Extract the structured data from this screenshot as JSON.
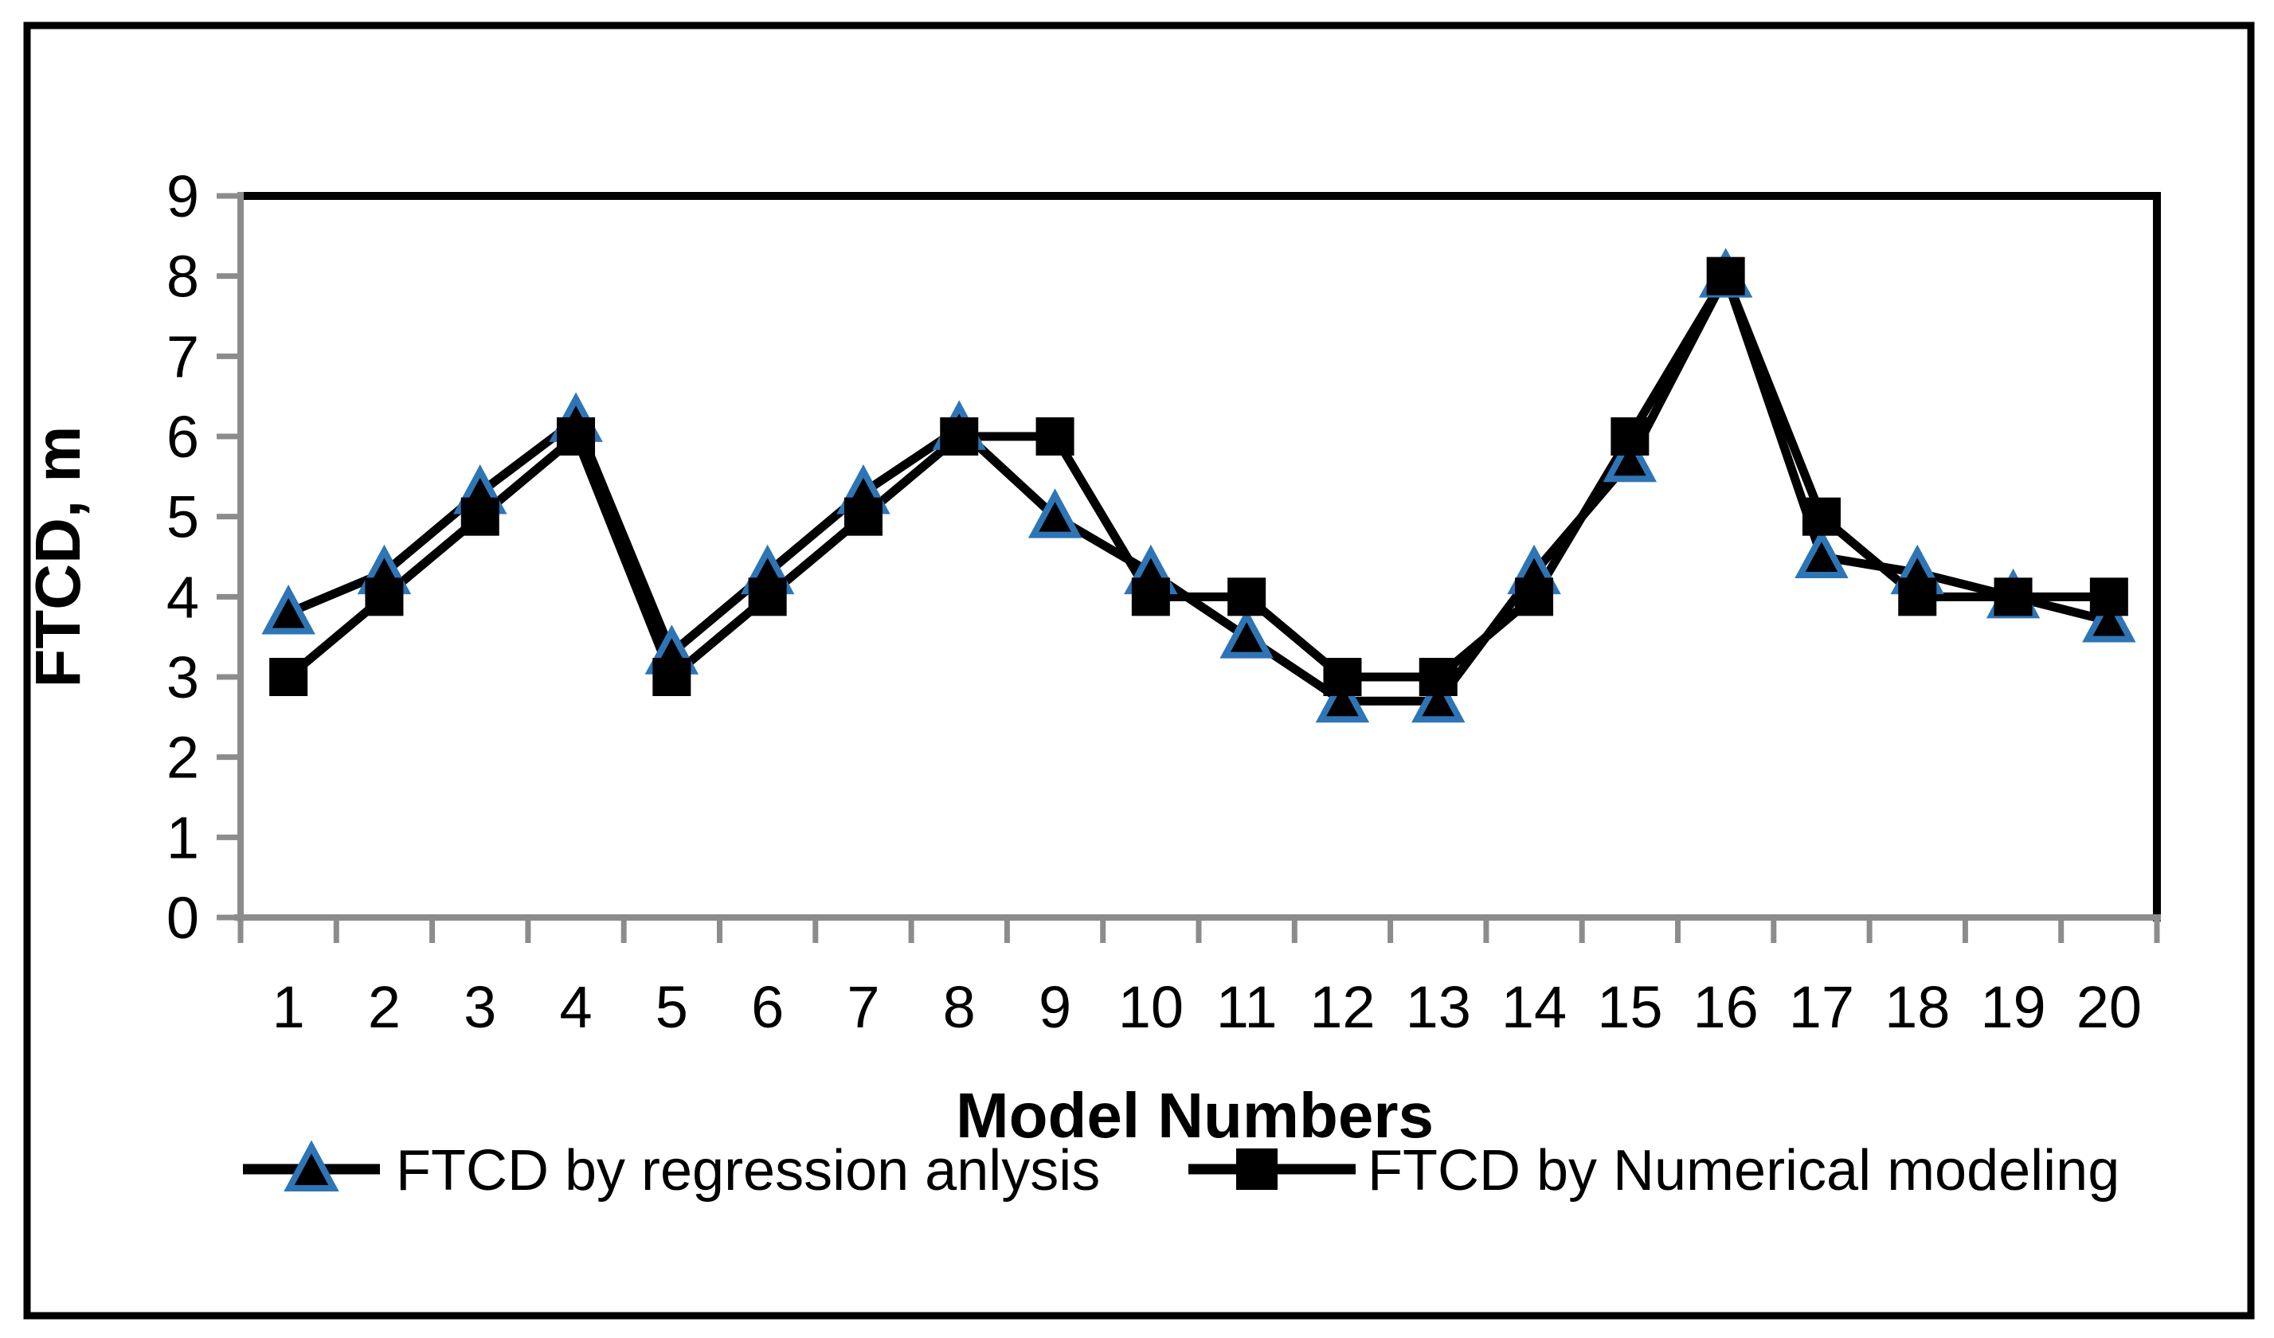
{
  "figure": {
    "background": "#ffffff",
    "outer_border_color": "#000000",
    "plot_border_color": "#000000",
    "axis_color": "#8C8C8C",
    "text_color": "#000000"
  },
  "chart_data": {
    "type": "line",
    "title": "",
    "xlabel": "Model Numbers",
    "ylabel": "FTCD, m",
    "categories": [
      1,
      2,
      3,
      4,
      5,
      6,
      7,
      8,
      9,
      10,
      11,
      12,
      13,
      14,
      15,
      16,
      17,
      18,
      19,
      20
    ],
    "series": [
      {
        "name": "FTCD by regression anlysis",
        "marker": "triangle",
        "marker_fill": "#000000",
        "marker_stroke": "#2E75B6",
        "line_color": "#000000",
        "values": [
          3.8,
          4.3,
          5.3,
          6.2,
          3.3,
          4.3,
          5.3,
          6.1,
          5.0,
          4.3,
          3.5,
          2.7,
          2.7,
          4.3,
          5.7,
          8.0,
          4.5,
          4.3,
          4.0,
          3.7
        ]
      },
      {
        "name": "FTCD by Numerical modeling",
        "marker": "square",
        "marker_fill": "#000000",
        "marker_stroke": "#000000",
        "line_color": "#000000",
        "values": [
          3,
          4,
          5,
          6,
          3,
          4,
          5,
          6,
          6,
          4,
          4,
          3,
          3,
          4,
          6,
          8,
          5,
          4,
          4,
          4
        ]
      }
    ],
    "ylim": [
      0,
      9
    ],
    "ytick_step": 1,
    "yticks": [
      0,
      1,
      2,
      3,
      4,
      5,
      6,
      7,
      8,
      9
    ],
    "grid": false,
    "legend_position": "bottom"
  }
}
